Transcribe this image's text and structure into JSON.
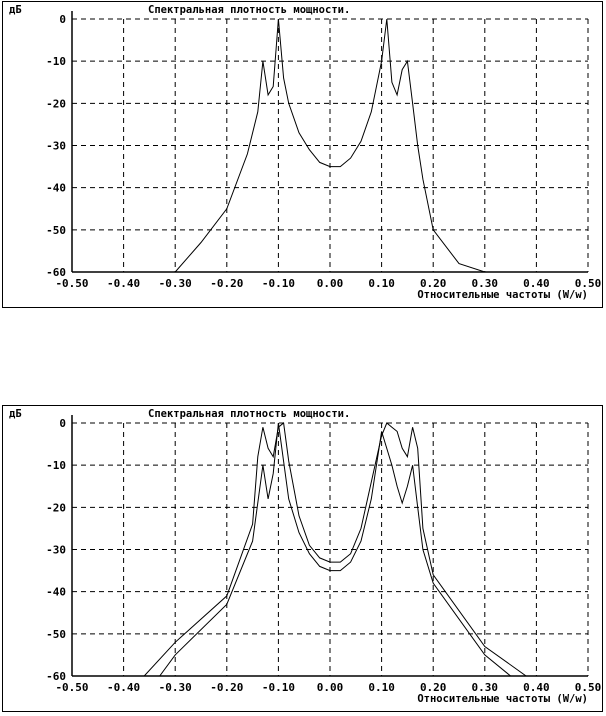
{
  "chart_data": [
    {
      "type": "line",
      "title": "Спектральная плотность мощности.",
      "ylabel": "дБ",
      "xlabel": "Относительные частоты (W/w)",
      "xlim": [
        -0.5,
        0.5
      ],
      "ylim": [
        -60,
        0
      ],
      "x_ticks": [
        "-0.50",
        "-0.40",
        "-0.30",
        "-0.20",
        "-0.10",
        "0.00",
        "0.10",
        "0.20",
        "0.30",
        "0.40",
        "0.50"
      ],
      "y_ticks": [
        "0",
        "-10",
        "-20",
        "-30",
        "-40",
        "-50",
        "-60"
      ],
      "grid": true,
      "series": [
        {
          "x": [
            -0.5,
            -0.3,
            -0.25,
            -0.2,
            -0.16,
            -0.14,
            -0.13,
            -0.12,
            -0.11,
            -0.1,
            -0.09,
            -0.08,
            -0.06,
            -0.04,
            -0.02,
            0.0,
            0.02,
            0.04,
            0.06,
            0.08,
            0.1,
            0.11,
            0.12,
            0.13,
            0.14,
            0.15,
            0.16,
            0.17,
            0.18,
            0.2,
            0.25,
            0.3,
            0.5
          ],
          "y": [
            -60,
            -60,
            -53,
            -45,
            -32,
            -22,
            -10,
            -18,
            -16,
            0,
            -14,
            -20,
            -27,
            -31,
            -34,
            -35,
            -35,
            -33,
            -29,
            -22,
            -10,
            0,
            -15,
            -18,
            -12,
            -10,
            -20,
            -30,
            -38,
            -50,
            -58,
            -60,
            -60
          ]
        }
      ]
    },
    {
      "type": "line",
      "title": "Спектральная плотность мощности.",
      "ylabel": "дБ",
      "xlabel": "Относительные частоты (W/w)",
      "xlim": [
        -0.5,
        0.5
      ],
      "ylim": [
        -60,
        0
      ],
      "x_ticks": [
        "-0.50",
        "-0.40",
        "-0.30",
        "-0.20",
        "-0.10",
        "0.00",
        "0.10",
        "0.20",
        "0.30",
        "0.40",
        "0.50"
      ],
      "y_ticks": [
        "0",
        "-10",
        "-20",
        "-30",
        "-40",
        "-50",
        "-60"
      ],
      "grid": true,
      "series": [
        {
          "x": [
            -0.5,
            -0.33,
            -0.3,
            -0.2,
            -0.15,
            -0.13,
            -0.12,
            -0.11,
            -0.1,
            -0.08,
            -0.06,
            -0.04,
            -0.02,
            0.0,
            0.02,
            0.04,
            0.06,
            0.08,
            0.1,
            0.12,
            0.13,
            0.14,
            0.15,
            0.16,
            0.17,
            0.18,
            0.2,
            0.3,
            0.35,
            0.5
          ],
          "y": [
            -60,
            -60,
            -55,
            -43,
            -28,
            -10,
            -18,
            -12,
            0,
            -18,
            -26,
            -31,
            -34,
            -35,
            -35,
            -33,
            -28,
            -18,
            -2,
            -10,
            -15,
            -19,
            -15,
            -10,
            -20,
            -30,
            -38,
            -55,
            -60,
            -60
          ]
        },
        {
          "x": [
            -0.5,
            -0.36,
            -0.3,
            -0.2,
            -0.15,
            -0.14,
            -0.13,
            -0.12,
            -0.11,
            -0.1,
            -0.09,
            -0.08,
            -0.06,
            -0.04,
            -0.02,
            0.0,
            0.02,
            0.04,
            0.06,
            0.08,
            0.1,
            0.11,
            0.12,
            0.13,
            0.14,
            0.15,
            0.16,
            0.17,
            0.18,
            0.2,
            0.3,
            0.38,
            0.5
          ],
          "y": [
            -60,
            -60,
            -52,
            -41,
            -24,
            -8,
            -1,
            -6,
            -8,
            -1,
            0,
            -9,
            -22,
            -29,
            -32,
            -33,
            -33,
            -31,
            -25,
            -14,
            -3,
            0,
            -1,
            -2,
            -6,
            -8,
            -1,
            -6,
            -25,
            -36,
            -53,
            -60,
            -60
          ]
        }
      ]
    }
  ]
}
